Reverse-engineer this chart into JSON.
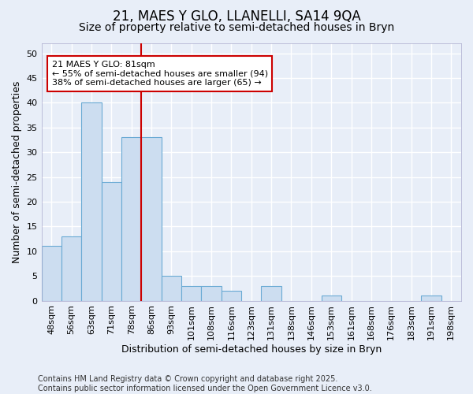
{
  "title": "21, MAES Y GLO, LLANELLI, SA14 9QA",
  "subtitle": "Size of property relative to semi-detached houses in Bryn",
  "xlabel": "Distribution of semi-detached houses by size in Bryn",
  "ylabel": "Number of semi-detached properties",
  "footer": "Contains HM Land Registry data © Crown copyright and database right 2025.\nContains public sector information licensed under the Open Government Licence v3.0.",
  "categories": [
    "48sqm",
    "56sqm",
    "63sqm",
    "71sqm",
    "78sqm",
    "86sqm",
    "93sqm",
    "101sqm",
    "108sqm",
    "116sqm",
    "123sqm",
    "131sqm",
    "138sqm",
    "146sqm",
    "153sqm",
    "161sqm",
    "168sqm",
    "176sqm",
    "183sqm",
    "191sqm",
    "198sqm"
  ],
  "values": [
    11,
    13,
    40,
    24,
    33,
    33,
    5,
    3,
    3,
    2,
    0,
    3,
    0,
    0,
    1,
    0,
    0,
    0,
    0,
    1,
    0
  ],
  "bar_color": "#ccddf0",
  "bar_edge_color": "#6aaad4",
  "vline_x": 4.5,
  "vline_color": "#cc0000",
  "annotation_line1": "21 MAES Y GLO: 81sqm",
  "annotation_line2": "← 55% of semi-detached houses are smaller (94)",
  "annotation_line3": "38% of semi-detached houses are larger (65) →",
  "annotation_box_color": "#ffffff",
  "annotation_box_edge": "#cc0000",
  "ylim": [
    0,
    52
  ],
  "yticks": [
    0,
    5,
    10,
    15,
    20,
    25,
    30,
    35,
    40,
    45,
    50
  ],
  "background_color": "#e8eef8",
  "grid_color": "#ffffff",
  "title_fontsize": 12,
  "subtitle_fontsize": 10,
  "label_fontsize": 9,
  "tick_fontsize": 8,
  "footer_fontsize": 7
}
